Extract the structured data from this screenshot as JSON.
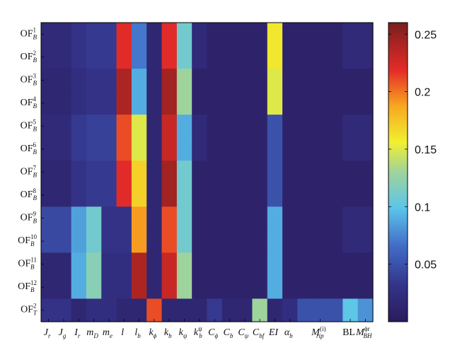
{
  "chart_data": {
    "type": "heatmap",
    "title": "",
    "xlabel": "",
    "ylabel": "",
    "rows": [
      {
        "base": "OF",
        "sub": "B",
        "sup": "1"
      },
      {
        "base": "OF",
        "sub": "B",
        "sup": "2"
      },
      {
        "base": "OF",
        "sub": "B",
        "sup": "3"
      },
      {
        "base": "OF",
        "sub": "B",
        "sup": "4"
      },
      {
        "base": "OF",
        "sub": "B",
        "sup": "5"
      },
      {
        "base": "OF",
        "sub": "B",
        "sup": "6"
      },
      {
        "base": "OF",
        "sub": "B",
        "sup": "7"
      },
      {
        "base": "OF",
        "sub": "B",
        "sup": "8"
      },
      {
        "base": "OF",
        "sub": "B",
        "sup": "9"
      },
      {
        "base": "OF",
        "sub": "B",
        "sup": "10"
      },
      {
        "base": "OF",
        "sub": "B",
        "sup": "11"
      },
      {
        "base": "OF",
        "sub": "B",
        "sup": "12"
      },
      {
        "base": "OF",
        "sub": "T",
        "sup": "2"
      }
    ],
    "columns": [
      {
        "base": "J",
        "sub": "r",
        "sup": ""
      },
      {
        "base": "J",
        "sub": "g",
        "sup": ""
      },
      {
        "base": "I",
        "sub": "r",
        "sup": ""
      },
      {
        "base": "m",
        "sub": "D",
        "sup": ""
      },
      {
        "base": "m",
        "sub": "e",
        "sup": ""
      },
      {
        "base": "l",
        "sub": "",
        "sup": ""
      },
      {
        "base": "l",
        "sub": "b",
        "sup": ""
      },
      {
        "base": "k",
        "sub": "ϕ",
        "sup": ""
      },
      {
        "base": "k",
        "sub": "b",
        "sup": ""
      },
      {
        "base": "k",
        "sub": "ψ",
        "sup": ""
      },
      {
        "base": "k",
        "sub": "b",
        "sup": "ψ"
      },
      {
        "base": "C",
        "sub": "ϕ",
        "sup": ""
      },
      {
        "base": "C",
        "sub": "b",
        "sup": ""
      },
      {
        "base": "C",
        "sub": "ψ",
        "sup": ""
      },
      {
        "base": "C",
        "sub": "bf",
        "sup": ""
      },
      {
        "base": "EI",
        "sub": "",
        "sup": ""
      },
      {
        "base": "α",
        "sub": "b",
        "sup": ""
      },
      {
        "base": "M",
        "sub": "rip",
        "sup": "(i)"
      },
      {
        "base": "BL",
        "sub": "",
        "sup": ""
      },
      {
        "base": "M",
        "sub": "BH",
        "sup": "ϕr"
      }
    ],
    "column_spans": [
      1,
      1,
      1,
      1,
      1,
      1,
      1,
      1,
      1,
      1,
      1,
      1,
      1,
      1,
      1,
      1,
      1,
      3,
      1,
      1
    ],
    "values": [
      [
        0.02,
        0.02,
        0.03,
        0.035,
        0.035,
        0.22,
        0.07,
        0.015,
        0.22,
        0.11,
        0.02,
        0.01,
        0.01,
        0.01,
        0.01,
        0.16,
        0.01,
        0.01,
        0.01,
        0.01,
        0.02,
        0.02
      ],
      [
        0.02,
        0.02,
        0.03,
        0.035,
        0.035,
        0.22,
        0.07,
        0.015,
        0.22,
        0.11,
        0.02,
        0.01,
        0.01,
        0.01,
        0.01,
        0.16,
        0.01,
        0.01,
        0.01,
        0.01,
        0.02,
        0.02
      ],
      [
        0.015,
        0.015,
        0.025,
        0.03,
        0.03,
        0.24,
        0.09,
        0.015,
        0.245,
        0.13,
        0.01,
        0.01,
        0.01,
        0.01,
        0.01,
        0.15,
        0.01,
        0.01,
        0.01,
        0.01,
        0.01,
        0.01
      ],
      [
        0.015,
        0.015,
        0.025,
        0.03,
        0.03,
        0.24,
        0.09,
        0.015,
        0.245,
        0.13,
        0.01,
        0.01,
        0.01,
        0.01,
        0.01,
        0.15,
        0.01,
        0.01,
        0.01,
        0.01,
        0.01,
        0.01
      ],
      [
        0.02,
        0.02,
        0.035,
        0.04,
        0.04,
        0.21,
        0.15,
        0.015,
        0.23,
        0.09,
        0.02,
        0.01,
        0.01,
        0.01,
        0.01,
        0.05,
        0.01,
        0.01,
        0.01,
        0.01,
        0.02,
        0.02
      ],
      [
        0.02,
        0.02,
        0.035,
        0.04,
        0.04,
        0.21,
        0.15,
        0.015,
        0.23,
        0.09,
        0.02,
        0.01,
        0.01,
        0.01,
        0.01,
        0.05,
        0.01,
        0.01,
        0.01,
        0.01,
        0.02,
        0.02
      ],
      [
        0.015,
        0.015,
        0.03,
        0.035,
        0.035,
        0.22,
        0.17,
        0.015,
        0.245,
        0.11,
        0.01,
        0.01,
        0.01,
        0.01,
        0.01,
        0.05,
        0.01,
        0.01,
        0.01,
        0.01,
        0.01,
        0.01
      ],
      [
        0.015,
        0.015,
        0.03,
        0.035,
        0.035,
        0.22,
        0.17,
        0.015,
        0.245,
        0.11,
        0.01,
        0.01,
        0.01,
        0.01,
        0.01,
        0.05,
        0.01,
        0.01,
        0.01,
        0.01,
        0.01,
        0.01
      ],
      [
        0.045,
        0.045,
        0.085,
        0.11,
        0.03,
        0.03,
        0.19,
        0.015,
        0.21,
        0.11,
        0.01,
        0.01,
        0.01,
        0.01,
        0.01,
        0.09,
        0.01,
        0.01,
        0.01,
        0.01,
        0.02,
        0.02
      ],
      [
        0.045,
        0.045,
        0.085,
        0.11,
        0.03,
        0.03,
        0.19,
        0.015,
        0.21,
        0.11,
        0.01,
        0.01,
        0.01,
        0.01,
        0.01,
        0.09,
        0.01,
        0.01,
        0.01,
        0.01,
        0.02,
        0.02
      ],
      [
        0.015,
        0.015,
        0.09,
        0.12,
        0.025,
        0.025,
        0.24,
        0.015,
        0.23,
        0.13,
        0.01,
        0.01,
        0.01,
        0.01,
        0.01,
        0.09,
        0.01,
        0.01,
        0.01,
        0.01,
        0.01,
        0.01
      ],
      [
        0.015,
        0.015,
        0.09,
        0.12,
        0.025,
        0.025,
        0.24,
        0.015,
        0.23,
        0.13,
        0.01,
        0.01,
        0.01,
        0.01,
        0.01,
        0.09,
        0.01,
        0.01,
        0.01,
        0.01,
        0.01,
        0.01
      ],
      [
        0.03,
        0.03,
        0.015,
        0.025,
        0.025,
        0.015,
        0.015,
        0.21,
        0.015,
        0.015,
        0.015,
        0.035,
        0.015,
        0.015,
        0.13,
        0.015,
        0.025,
        0.05,
        0.05,
        0.05,
        0.1,
        0.08
      ]
    ],
    "colorbar": {
      "min": 0.0,
      "max": 0.26,
      "ticks": [
        0.05,
        0.1,
        0.15,
        0.2,
        0.25
      ],
      "tick_labels": [
        "0.05",
        "0.1",
        "0.15",
        "0.2",
        "0.25"
      ],
      "colormap": "jet-like (dark navy → blue → cyan → yellow → red → dark red)"
    }
  }
}
